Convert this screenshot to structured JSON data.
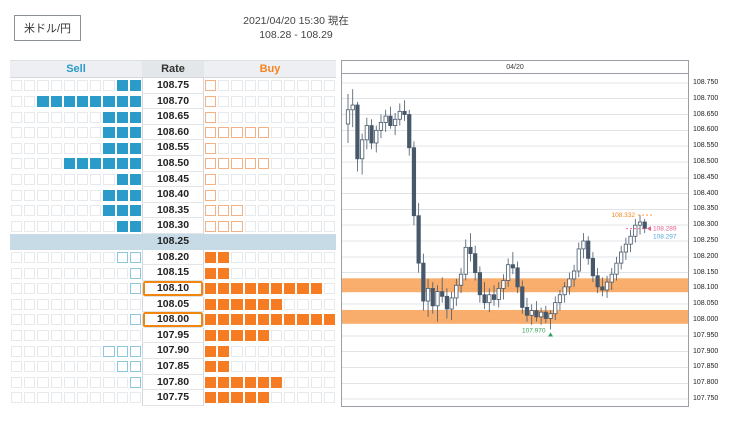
{
  "header": {
    "instrument": "米ドル/円",
    "timestamp": "2021/04/20 15:30 現在",
    "quote": "108.28 - 108.29"
  },
  "depth": {
    "sell_label": "Sell",
    "rate_label": "Rate",
    "buy_label": "Buy",
    "grid_columns": 10,
    "colors": {
      "sell": "#2b9cc9",
      "sell_outline": "#8ec6e0",
      "buy": "#f57c22",
      "buy_outline": "#f3b286",
      "highlight_row": "#c7dbe7",
      "rate_box": "#f0860e"
    },
    "rows": [
      {
        "rate": "108.75",
        "sell": 2,
        "sell_style": "filled",
        "buy": 1,
        "buy_style": "outline"
      },
      {
        "rate": "108.70",
        "sell": 8,
        "sell_style": "filled",
        "buy": 1,
        "buy_style": "outline"
      },
      {
        "rate": "108.65",
        "sell": 3,
        "sell_style": "filled",
        "buy": 1,
        "buy_style": "outline"
      },
      {
        "rate": "108.60",
        "sell": 3,
        "sell_style": "filled",
        "buy": 5,
        "buy_style": "outline"
      },
      {
        "rate": "108.55",
        "sell": 3,
        "sell_style": "filled",
        "buy": 1,
        "buy_style": "outline"
      },
      {
        "rate": "108.50",
        "sell": 6,
        "sell_style": "filled",
        "buy": 5,
        "buy_style": "outline"
      },
      {
        "rate": "108.45",
        "sell": 2,
        "sell_style": "filled",
        "buy": 1,
        "buy_style": "outline"
      },
      {
        "rate": "108.40",
        "sell": 3,
        "sell_style": "filled",
        "buy": 1,
        "buy_style": "outline"
      },
      {
        "rate": "108.35",
        "sell": 3,
        "sell_style": "filled",
        "buy": 3,
        "buy_style": "outline"
      },
      {
        "rate": "108.30",
        "sell": 2,
        "sell_style": "filled",
        "buy": 3,
        "buy_style": "outline"
      },
      {
        "rate": "108.25",
        "sell": 0,
        "buy": 0,
        "highlight": true
      },
      {
        "rate": "108.20",
        "sell": 2,
        "sell_style": "outline",
        "buy": 2,
        "buy_style": "filled"
      },
      {
        "rate": "108.15",
        "sell": 1,
        "sell_style": "outline",
        "buy": 2,
        "buy_style": "filled"
      },
      {
        "rate": "108.10",
        "sell": 1,
        "sell_style": "outline",
        "buy": 9,
        "buy_style": "filled",
        "boxed": true
      },
      {
        "rate": "108.05",
        "sell": 0,
        "sell_style": "outline",
        "buy": 6,
        "buy_style": "filled"
      },
      {
        "rate": "108.00",
        "sell": 1,
        "sell_style": "outline",
        "buy": 10,
        "buy_style": "filled",
        "boxed": true
      },
      {
        "rate": "107.95",
        "sell": 0,
        "sell_style": "outline",
        "buy": 5,
        "buy_style": "filled"
      },
      {
        "rate": "107.90",
        "sell": 3,
        "sell_style": "outline",
        "buy": 2,
        "buy_style": "filled"
      },
      {
        "rate": "107.85",
        "sell": 2,
        "sell_style": "outline",
        "buy": 2,
        "buy_style": "filled"
      },
      {
        "rate": "107.80",
        "sell": 1,
        "sell_style": "outline",
        "buy": 6,
        "buy_style": "filled"
      },
      {
        "rate": "107.75",
        "sell": 0,
        "sell_style": "outline",
        "buy": 5,
        "buy_style": "filled"
      }
    ]
  },
  "chart_data": {
    "type": "candlestick",
    "title": "04/20",
    "y_min": 107.725,
    "y_max": 108.775,
    "grid": true,
    "y_ticks": [
      "108.750",
      "108.700",
      "108.650",
      "108.600",
      "108.550",
      "108.500",
      "108.450",
      "108.400",
      "108.350",
      "108.300",
      "108.250",
      "108.200",
      "108.150",
      "108.100",
      "108.050",
      "108.000",
      "107.950",
      "107.900",
      "107.850",
      "107.800",
      "107.750"
    ],
    "bands": [
      {
        "from": 108.088,
        "to": 108.132,
        "color": "#f8a055"
      },
      {
        "from": 107.988,
        "to": 108.032,
        "color": "#f8a055"
      }
    ],
    "annotations": [
      {
        "type": "high",
        "text": "108.332",
        "price": 108.332,
        "candle": 62,
        "color": "#f5861f"
      },
      {
        "type": "bid",
        "text": "108.289",
        "price": 108.289,
        "color": "#e85c8a"
      },
      {
        "type": "ask",
        "text": "108.297",
        "price": 108.297,
        "color": "#53a7dd"
      },
      {
        "type": "low",
        "text": "107.970",
        "price": 107.97,
        "candle": 43,
        "color": "#2fa052"
      }
    ],
    "candles": [
      [
        108.62,
        108.715,
        108.56,
        108.665
      ],
      [
        108.665,
        108.73,
        108.61,
        108.68
      ],
      [
        108.68,
        108.69,
        108.47,
        108.51
      ],
      [
        108.51,
        108.59,
        108.46,
        108.57
      ],
      [
        108.57,
        108.64,
        108.54,
        108.615
      ],
      [
        108.615,
        108.635,
        108.54,
        108.56
      ],
      [
        108.56,
        108.615,
        108.53,
        108.6
      ],
      [
        108.6,
        108.65,
        108.575,
        108.625
      ],
      [
        108.625,
        108.665,
        108.595,
        108.645
      ],
      [
        108.645,
        108.675,
        108.605,
        108.615
      ],
      [
        108.615,
        108.655,
        108.585,
        108.635
      ],
      [
        108.635,
        108.685,
        108.615,
        108.66
      ],
      [
        108.66,
        108.695,
        108.63,
        108.65
      ],
      [
        108.65,
        108.665,
        108.52,
        108.545
      ],
      [
        108.545,
        108.565,
        108.3,
        108.33
      ],
      [
        108.33,
        108.37,
        108.15,
        108.18
      ],
      [
        108.18,
        108.21,
        108.03,
        108.06
      ],
      [
        108.06,
        108.13,
        108.01,
        108.1
      ],
      [
        108.1,
        108.12,
        108.02,
        108.045
      ],
      [
        108.045,
        108.11,
        107.995,
        108.09
      ],
      [
        108.09,
        108.135,
        108.055,
        108.075
      ],
      [
        108.075,
        108.1,
        108.005,
        108.035
      ],
      [
        108.035,
        108.09,
        108.0,
        108.07
      ],
      [
        108.07,
        108.13,
        108.045,
        108.11
      ],
      [
        108.11,
        108.165,
        108.085,
        108.145
      ],
      [
        108.145,
        108.255,
        108.125,
        108.23
      ],
      [
        108.23,
        108.275,
        108.185,
        108.21
      ],
      [
        108.21,
        108.235,
        108.125,
        108.15
      ],
      [
        108.15,
        108.17,
        108.055,
        108.08
      ],
      [
        108.08,
        108.12,
        108.035,
        108.055
      ],
      [
        108.055,
        108.1,
        108.025,
        108.08
      ],
      [
        108.08,
        108.11,
        108.045,
        108.065
      ],
      [
        108.065,
        108.12,
        108.04,
        108.1
      ],
      [
        108.1,
        108.145,
        108.065,
        108.125
      ],
      [
        108.125,
        108.195,
        108.105,
        108.175
      ],
      [
        108.175,
        108.215,
        108.145,
        108.165
      ],
      [
        108.165,
        108.185,
        108.085,
        108.105
      ],
      [
        108.105,
        108.125,
        108.02,
        108.04
      ],
      [
        108.04,
        108.07,
        107.995,
        108.015
      ],
      [
        108.015,
        108.05,
        107.985,
        108.03
      ],
      [
        108.03,
        108.06,
        107.995,
        108.01
      ],
      [
        108.01,
        108.04,
        107.985,
        108.025
      ],
      [
        108.025,
        108.045,
        107.99,
        108.005
      ],
      [
        108.005,
        108.03,
        107.97,
        108.02
      ],
      [
        108.02,
        108.075,
        108.0,
        108.055
      ],
      [
        108.055,
        108.095,
        108.03,
        108.08
      ],
      [
        108.08,
        108.12,
        108.055,
        108.105
      ],
      [
        108.105,
        108.15,
        108.08,
        108.13
      ],
      [
        108.13,
        108.175,
        108.105,
        108.155
      ],
      [
        108.155,
        108.245,
        108.135,
        108.225
      ],
      [
        108.225,
        108.275,
        108.195,
        108.25
      ],
      [
        108.25,
        108.265,
        108.175,
        108.195
      ],
      [
        108.195,
        108.215,
        108.12,
        108.14
      ],
      [
        108.14,
        108.165,
        108.085,
        108.105
      ],
      [
        108.105,
        108.135,
        108.075,
        108.095
      ],
      [
        108.095,
        108.14,
        108.07,
        108.12
      ],
      [
        108.12,
        108.165,
        108.095,
        108.145
      ],
      [
        108.145,
        108.2,
        108.125,
        108.18
      ],
      [
        108.18,
        108.235,
        108.16,
        108.215
      ],
      [
        108.215,
        108.26,
        108.19,
        108.24
      ],
      [
        108.24,
        108.285,
        108.215,
        108.265
      ],
      [
        108.265,
        108.32,
        108.245,
        108.3
      ],
      [
        108.3,
        108.332,
        108.27,
        108.31
      ],
      [
        108.31,
        108.32,
        108.275,
        108.29
      ]
    ]
  }
}
